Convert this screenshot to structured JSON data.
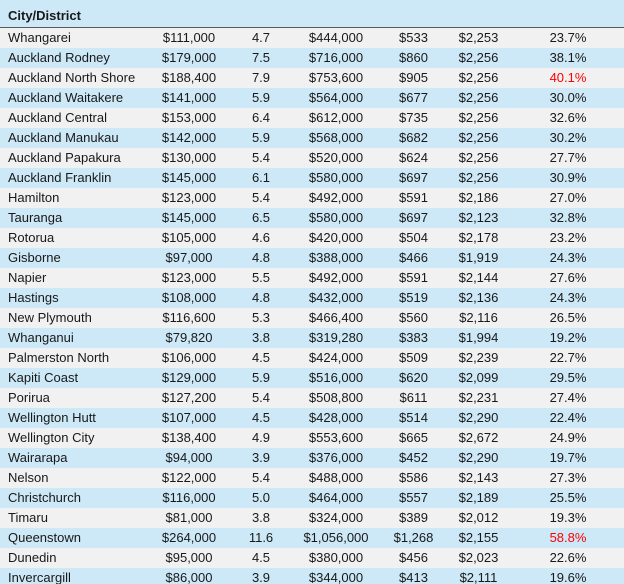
{
  "colors": {
    "row_blue": "#cde8f6",
    "row_gray": "#f1f1f1",
    "alert_red": "#ff0000",
    "text": "#191919",
    "header_border": "#595959"
  },
  "table": {
    "header": {
      "city_label": "City/District"
    },
    "rows": [
      {
        "city": "Whangarei",
        "values": [
          "$111,000",
          "4.7",
          "$444,000",
          "$533",
          "$2,253",
          "23.7%"
        ],
        "alert": false
      },
      {
        "city": "Auckland Rodney",
        "values": [
          "$179,000",
          "7.5",
          "$716,000",
          "$860",
          "$2,256",
          "38.1%"
        ],
        "alert": false
      },
      {
        "city": "Auckland North Shore",
        "values": [
          "$188,400",
          "7.9",
          "$753,600",
          "$905",
          "$2,256",
          "40.1%"
        ],
        "alert": true
      },
      {
        "city": "Auckland Waitakere",
        "values": [
          "$141,000",
          "5.9",
          "$564,000",
          "$677",
          "$2,256",
          "30.0%"
        ],
        "alert": false
      },
      {
        "city": "Auckland Central",
        "values": [
          "$153,000",
          "6.4",
          "$612,000",
          "$735",
          "$2,256",
          "32.6%"
        ],
        "alert": false
      },
      {
        "city": "Auckland Manukau",
        "values": [
          "$142,000",
          "5.9",
          "$568,000",
          "$682",
          "$2,256",
          "30.2%"
        ],
        "alert": false
      },
      {
        "city": "Auckland Papakura",
        "values": [
          "$130,000",
          "5.4",
          "$520,000",
          "$624",
          "$2,256",
          "27.7%"
        ],
        "alert": false
      },
      {
        "city": "Auckland Franklin",
        "values": [
          "$145,000",
          "6.1",
          "$580,000",
          "$697",
          "$2,256",
          "30.9%"
        ],
        "alert": false
      },
      {
        "city": "Hamilton",
        "values": [
          "$123,000",
          "5.4",
          "$492,000",
          "$591",
          "$2,186",
          "27.0%"
        ],
        "alert": false
      },
      {
        "city": "Tauranga",
        "values": [
          "$145,000",
          "6.5",
          "$580,000",
          "$697",
          "$2,123",
          "32.8%"
        ],
        "alert": false
      },
      {
        "city": "Rotorua",
        "values": [
          "$105,000",
          "4.6",
          "$420,000",
          "$504",
          "$2,178",
          "23.2%"
        ],
        "alert": false
      },
      {
        "city": "Gisborne",
        "values": [
          "$97,000",
          "4.8",
          "$388,000",
          "$466",
          "$1,919",
          "24.3%"
        ],
        "alert": false
      },
      {
        "city": "Napier",
        "values": [
          "$123,000",
          "5.5",
          "$492,000",
          "$591",
          "$2,144",
          "27.6%"
        ],
        "alert": false
      },
      {
        "city": "Hastings",
        "values": [
          "$108,000",
          "4.8",
          "$432,000",
          "$519",
          "$2,136",
          "24.3%"
        ],
        "alert": false
      },
      {
        "city": "New Plymouth",
        "values": [
          "$116,600",
          "5.3",
          "$466,400",
          "$560",
          "$2,116",
          "26.5%"
        ],
        "alert": false
      },
      {
        "city": "Whanganui",
        "values": [
          "$79,820",
          "3.8",
          "$319,280",
          "$383",
          "$1,994",
          "19.2%"
        ],
        "alert": false
      },
      {
        "city": "Palmerston North",
        "values": [
          "$106,000",
          "4.5",
          "$424,000",
          "$509",
          "$2,239",
          "22.7%"
        ],
        "alert": false
      },
      {
        "city": "Kapiti Coast",
        "values": [
          "$129,000",
          "5.9",
          "$516,000",
          "$620",
          "$2,099",
          "29.5%"
        ],
        "alert": false
      },
      {
        "city": "Porirua",
        "values": [
          "$127,200",
          "5.4",
          "$508,800",
          "$611",
          "$2,231",
          "27.4%"
        ],
        "alert": false
      },
      {
        "city": "Wellington Hutt",
        "values": [
          "$107,000",
          "4.5",
          "$428,000",
          "$514",
          "$2,290",
          "22.4%"
        ],
        "alert": false
      },
      {
        "city": "Wellington City",
        "values": [
          "$138,400",
          "4.9",
          "$553,600",
          "$665",
          "$2,672",
          "24.9%"
        ],
        "alert": false
      },
      {
        "city": "Wairarapa",
        "values": [
          "$94,000",
          "3.9",
          "$376,000",
          "$452",
          "$2,290",
          "19.7%"
        ],
        "alert": false
      },
      {
        "city": "Nelson",
        "values": [
          "$122,000",
          "5.4",
          "$488,000",
          "$586",
          "$2,143",
          "27.3%"
        ],
        "alert": false
      },
      {
        "city": "Christchurch",
        "values": [
          "$116,000",
          "5.0",
          "$464,000",
          "$557",
          "$2,189",
          "25.5%"
        ],
        "alert": false
      },
      {
        "city": "Timaru",
        "values": [
          "$81,000",
          "3.8",
          "$324,000",
          "$389",
          "$2,012",
          "19.3%"
        ],
        "alert": false
      },
      {
        "city": "Queenstown",
        "values": [
          "$264,000",
          "11.6",
          "$1,056,000",
          "$1,268",
          "$2,155",
          "58.8%"
        ],
        "alert": true
      },
      {
        "city": "Dunedin",
        "values": [
          "$95,000",
          "4.5",
          "$380,000",
          "$456",
          "$2,023",
          "22.6%"
        ],
        "alert": false
      },
      {
        "city": "Invercargill",
        "values": [
          "$86,000",
          "3.9",
          "$344,000",
          "$413",
          "$2,111",
          "19.6%"
        ],
        "alert": false
      }
    ]
  }
}
